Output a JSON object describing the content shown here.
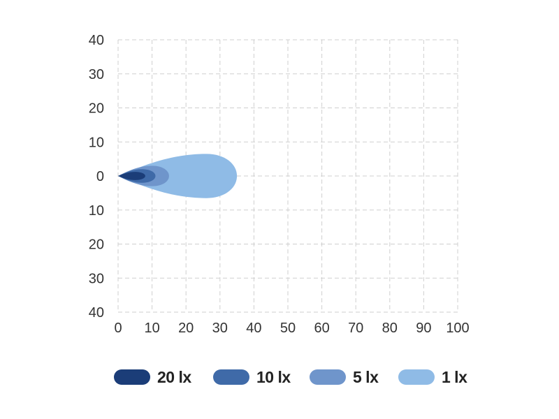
{
  "chart_data": {
    "type": "area",
    "title": "",
    "xlabel": "",
    "ylabel": "",
    "xlim": [
      0,
      100
    ],
    "ylim": [
      -40,
      40
    ],
    "x_ticks": [
      "0",
      "10",
      "20",
      "30",
      "40",
      "50",
      "60",
      "70",
      "80",
      "90",
      "100"
    ],
    "y_ticks": [
      "40",
      "30",
      "20",
      "10",
      "0",
      "10",
      "20",
      "30",
      "40"
    ],
    "grid": true,
    "legend_position": "bottom",
    "series": [
      {
        "name": "1 lx",
        "color": "#8fbbe6",
        "reach": 35,
        "peak_x": 26,
        "half_width": 6.5
      },
      {
        "name": "5 lx",
        "color": "#6f95cb",
        "reach": 15,
        "peak_x": 10,
        "half_width": 3
      },
      {
        "name": "10 lx",
        "color": "#3f6aa8",
        "reach": 11,
        "peak_x": 7,
        "half_width": 2
      },
      {
        "name": "20 lx",
        "color": "#1b3d78",
        "reach": 8,
        "peak_x": 5,
        "half_width": 1.2
      }
    ]
  },
  "legend": {
    "items": [
      {
        "label": "20 lx",
        "color": "#1b3d78"
      },
      {
        "label": "10 lx",
        "color": "#3f6aa8"
      },
      {
        "label": "5 lx",
        "color": "#6f95cb"
      },
      {
        "label": "1 lx",
        "color": "#8fbbe6"
      }
    ]
  }
}
